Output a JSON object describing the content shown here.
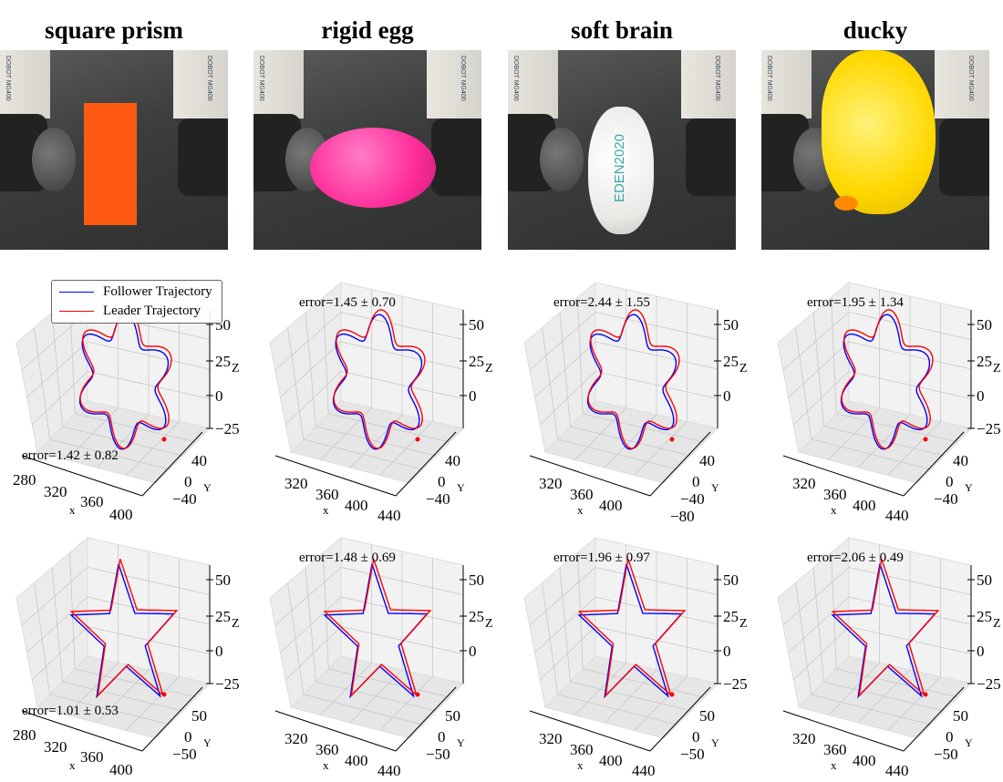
{
  "columns": [
    {
      "title": "square prism",
      "object": "prism",
      "object_color": "#ff5a12"
    },
    {
      "title": "rigid egg",
      "object": "egg",
      "object_color": "#ff2d9b"
    },
    {
      "title": "soft brain",
      "object": "brain",
      "object_color": "#e9e9e6",
      "object_lettering": "EDEN2020"
    },
    {
      "title": "ducky",
      "object": "duck",
      "object_color": "#ffd800"
    }
  ],
  "photo_lettering": {
    "robot_label": "DOBOT MG400"
  },
  "legend": {
    "follower_label": "Follower Trajectory",
    "leader_label": "Leader Trajectory",
    "follower_color": "#0000ff",
    "leader_color": "#ff0000"
  },
  "axis_labels": {
    "x": "x",
    "y": "Y",
    "z": "Z"
  },
  "plots": [
    {
      "row": 0,
      "col": 0,
      "shape": "flower",
      "error": "error=1.42 ± 0.82",
      "error_position": "bottom",
      "x_ticks": [
        "280",
        "320",
        "360",
        "400"
      ],
      "y_ticks": [
        "40",
        "0",
        "−40"
      ],
      "z_ticks": [
        "50",
        "25",
        "0",
        "−25"
      ]
    },
    {
      "row": 0,
      "col": 1,
      "shape": "flower",
      "error": "error=1.45 ± 0.70",
      "error_position": "top",
      "x_ticks": [
        "320",
        "360",
        "400",
        "440"
      ],
      "y_ticks": [
        "40",
        "0",
        "−40"
      ],
      "z_ticks": [
        "50",
        "25",
        "0"
      ]
    },
    {
      "row": 0,
      "col": 2,
      "shape": "flower",
      "error": "error=2.44 ± 1.55",
      "error_position": "top",
      "x_ticks": [
        "320",
        "360",
        "400"
      ],
      "y_ticks": [
        "40",
        "0",
        "−40",
        "−80"
      ],
      "z_ticks": [
        "50",
        "25",
        "0"
      ]
    },
    {
      "row": 0,
      "col": 3,
      "shape": "flower",
      "error": "error=1.95 ± 1.34",
      "error_position": "top",
      "x_ticks": [
        "320",
        "360",
        "400",
        "440"
      ],
      "y_ticks": [
        "40",
        "0",
        "−40"
      ],
      "z_ticks": [
        "50",
        "25",
        "0",
        "−25"
      ]
    },
    {
      "row": 1,
      "col": 0,
      "shape": "star",
      "error": "error=1.01 ± 0.53",
      "error_position": "bottom",
      "x_ticks": [
        "280",
        "320",
        "360",
        "400"
      ],
      "y_ticks": [
        "50",
        "0",
        "−50"
      ],
      "z_ticks": [
        "50",
        "25",
        "0",
        "−25"
      ]
    },
    {
      "row": 1,
      "col": 1,
      "shape": "star",
      "error": "error=1.48 ± 0.69",
      "error_position": "top",
      "x_ticks": [
        "320",
        "360",
        "400",
        "440"
      ],
      "y_ticks": [
        "50",
        "0",
        "−50"
      ],
      "z_ticks": [
        "50",
        "25",
        "0"
      ]
    },
    {
      "row": 1,
      "col": 2,
      "shape": "star",
      "error": "error=1.96 ± 0.97",
      "error_position": "top",
      "x_ticks": [
        "320",
        "360",
        "400",
        "440"
      ],
      "y_ticks": [
        "50",
        "0",
        "−50"
      ],
      "z_ticks": [
        "50",
        "25",
        "0",
        "−25"
      ]
    },
    {
      "row": 1,
      "col": 3,
      "shape": "star",
      "error": "error=2.06 ± 0.49",
      "error_position": "top",
      "x_ticks": [
        "320",
        "360",
        "400",
        "440"
      ],
      "y_ticks": [
        "50",
        "0",
        "−50"
      ],
      "z_ticks": [
        "50",
        "25",
        "0",
        "−25"
      ]
    }
  ]
}
